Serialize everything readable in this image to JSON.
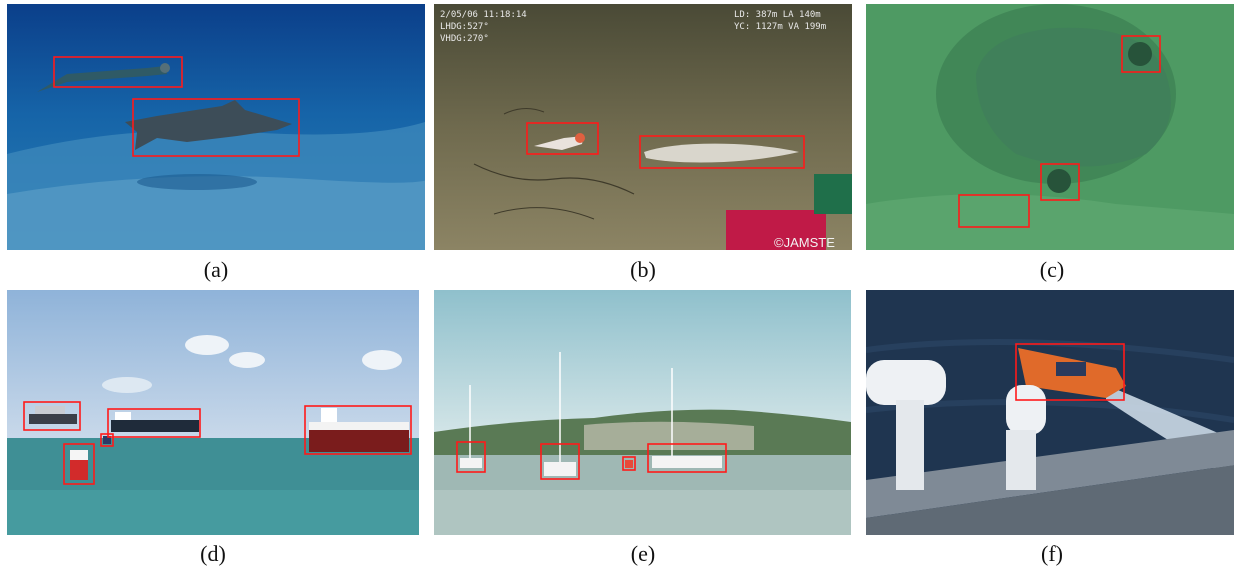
{
  "panels": [
    {
      "id": "a",
      "caption": "(a)"
    },
    {
      "id": "b",
      "caption": "(b)",
      "overlay": {
        "top_left_1": "2/05/06  11:18:14",
        "top_left_2": "LHDG:527°",
        "top_left_3": "VHDG:270°",
        "top_right_1": "LD: 387m LA  140m",
        "top_right_2": "YC: 1127m VA  199m",
        "watermark": "©JAMSTE"
      }
    },
    {
      "id": "c",
      "caption": "(c)"
    },
    {
      "id": "d",
      "caption": "(d)"
    },
    {
      "id": "e",
      "caption": "(e)"
    },
    {
      "id": "f",
      "caption": "(f)"
    }
  ],
  "colors": {
    "bbox": "#ff1a1a",
    "background": "#ffffff"
  }
}
